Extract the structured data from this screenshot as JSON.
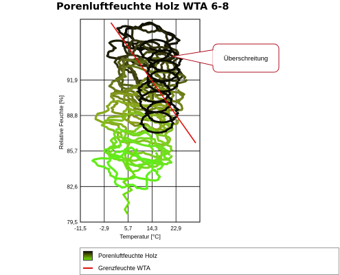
{
  "chart_data": {
    "type": "line",
    "title": "Porenluftfeuchte Holz WTA 6-8",
    "xlabel": "Temperatur [°C]",
    "ylabel": "Relative Feuchte [%]",
    "xlim": [
      -11.5,
      31.5
    ],
    "ylim": [
      79.5,
      97.2
    ],
    "x_ticks": [
      "-11,5",
      "-2,9",
      "5,7",
      "14,3",
      "22,9"
    ],
    "x_tick_values": [
      -11.5,
      -2.9,
      5.7,
      14.3,
      22.9
    ],
    "y_ticks": [
      "79,5",
      "82,6",
      "85,7",
      "88,8",
      "91,9"
    ],
    "y_tick_values": [
      79.5,
      82.6,
      85.7,
      88.8,
      91.9
    ],
    "grid": true,
    "legend_position": "bottom",
    "series": [
      {
        "name": "Porenluftfeuchte Holz",
        "color_gradient": [
          "#0b0b00",
          "#3a3a10",
          "#6b7a1a",
          "#8aa01a",
          "#7ed321",
          "#5ef01a"
        ],
        "x_range": [
          -4,
          28
        ],
        "y_range": [
          80.5,
          96.9
        ]
      },
      {
        "name": "Grenzfeuchte WTA",
        "color": "#e01010",
        "x": [
          -0.5,
          30
        ],
        "y": [
          96.9,
          86.4
        ]
      }
    ],
    "annotations": [
      {
        "text": "Überschreitung"
      }
    ]
  },
  "legend": {
    "items": [
      {
        "label": "Porenluftfeuchte Holz"
      },
      {
        "label": "Grenzfeuchte WTA"
      }
    ]
  }
}
